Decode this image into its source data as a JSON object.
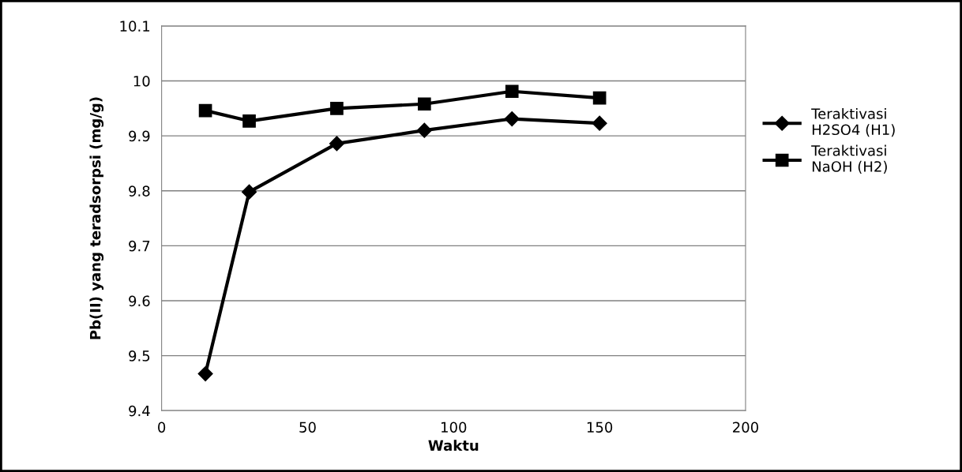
{
  "chart_data": {
    "type": "line",
    "xlabel": "Waktu",
    "ylabel": "Pb(II) yang teradsorpsi (mg/g)",
    "x": [
      15,
      30,
      60,
      90,
      120,
      150
    ],
    "series": [
      {
        "name": "Teraktivasi\nH2SO4 (H1)",
        "color": "#000000",
        "marker": "diamond",
        "values": [
          9.467,
          9.798,
          9.886,
          9.91,
          9.931,
          9.923
        ]
      },
      {
        "name": "Teraktivasi\nNaOH (H2)",
        "color": "#000000",
        "marker": "square",
        "values": [
          9.946,
          9.927,
          9.95,
          9.958,
          9.981,
          9.969
        ]
      }
    ],
    "xlim": [
      0,
      200
    ],
    "xticks": [
      0,
      50,
      100,
      150,
      200
    ],
    "ylim": [
      9.4,
      10.1
    ],
    "yticks": [
      9.4,
      9.5,
      9.6,
      9.7,
      9.8,
      9.9,
      10,
      10.1
    ],
    "grid": "y",
    "legend": "right",
    "line_style": "solid"
  }
}
